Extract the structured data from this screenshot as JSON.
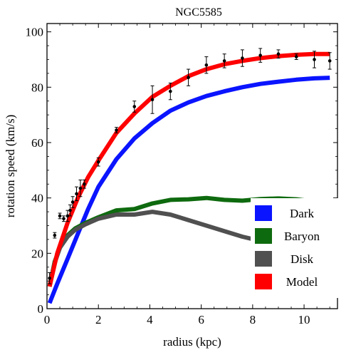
{
  "chart_data": {
    "type": "line",
    "title": "NGC5585",
    "xlabel": "radius (kpc)",
    "ylabel": "rotation speed (km/s)",
    "xlim": [
      0,
      11.3
    ],
    "ylim": [
      0,
      103
    ],
    "x_ticks": [
      0,
      2,
      4,
      6,
      8,
      10
    ],
    "y_ticks": [
      0,
      20,
      40,
      60,
      80,
      100
    ],
    "legend_position": "right",
    "grid": false,
    "series": [
      {
        "name": "Dark",
        "color": "#0a14ff",
        "points": [
          [
            0.1,
            2
          ],
          [
            0.4,
            9
          ],
          [
            0.8,
            18
          ],
          [
            1.2,
            27
          ],
          [
            1.6,
            36
          ],
          [
            2.0,
            44
          ],
          [
            2.7,
            54
          ],
          [
            3.4,
            61.5
          ],
          [
            4.1,
            67
          ],
          [
            4.8,
            71.5
          ],
          [
            5.5,
            74.5
          ],
          [
            6.2,
            76.8
          ],
          [
            6.9,
            78.5
          ],
          [
            7.6,
            80
          ],
          [
            8.3,
            81.2
          ],
          [
            9.0,
            82
          ],
          [
            9.7,
            82.7
          ],
          [
            10.4,
            83.2
          ],
          [
            11.0,
            83.4
          ]
        ]
      },
      {
        "name": "Baryon",
        "color": "#0e6a0e",
        "points": [
          [
            0.1,
            8
          ],
          [
            0.3,
            17
          ],
          [
            0.5,
            22
          ],
          [
            0.8,
            26.5
          ],
          [
            1.1,
            29
          ],
          [
            1.5,
            31
          ],
          [
            2.0,
            33
          ],
          [
            2.7,
            35.5
          ],
          [
            3.4,
            36
          ],
          [
            4.1,
            38
          ],
          [
            4.8,
            39.3
          ],
          [
            5.5,
            39.5
          ],
          [
            6.2,
            40
          ],
          [
            6.9,
            39.3
          ],
          [
            7.6,
            39
          ],
          [
            8.3,
            39.6
          ],
          [
            9.0,
            39.8
          ],
          [
            9.7,
            39.5
          ],
          [
            10.4,
            38.7
          ],
          [
            11.0,
            38.5
          ]
        ]
      },
      {
        "name": "Disk",
        "color": "#505050",
        "points": [
          [
            0.1,
            8
          ],
          [
            0.3,
            16.5
          ],
          [
            0.5,
            22
          ],
          [
            0.8,
            26
          ],
          [
            1.1,
            28.5
          ],
          [
            1.5,
            30.5
          ],
          [
            2.0,
            32.5
          ],
          [
            2.7,
            34
          ],
          [
            3.4,
            34
          ],
          [
            4.1,
            35
          ],
          [
            4.8,
            34
          ],
          [
            5.5,
            32
          ],
          [
            6.2,
            30
          ],
          [
            6.9,
            28
          ],
          [
            7.6,
            26
          ],
          [
            8.3,
            24.5
          ],
          [
            9.0,
            23
          ],
          [
            9.7,
            22
          ],
          [
            10.4,
            21.5
          ],
          [
            11.0,
            21
          ]
        ]
      },
      {
        "name": "Model",
        "color": "#ff0000",
        "points": [
          [
            0.1,
            8
          ],
          [
            0.4,
            20
          ],
          [
            0.8,
            31
          ],
          [
            1.2,
            40
          ],
          [
            1.6,
            47.5
          ],
          [
            2.0,
            53.5
          ],
          [
            2.7,
            63.5
          ],
          [
            3.4,
            70.5
          ],
          [
            4.1,
            76.5
          ],
          [
            4.8,
            80.5
          ],
          [
            5.5,
            84
          ],
          [
            6.2,
            86.5
          ],
          [
            6.9,
            88.3
          ],
          [
            7.6,
            89.5
          ],
          [
            8.3,
            90.5
          ],
          [
            9.0,
            91.2
          ],
          [
            9.7,
            91.7
          ],
          [
            10.4,
            92
          ],
          [
            11.0,
            92
          ]
        ]
      }
    ],
    "observations": [
      {
        "x": 0.1,
        "y": 11,
        "err": 2
      },
      {
        "x": 0.3,
        "y": 26.5,
        "err": 1
      },
      {
        "x": 0.5,
        "y": 33.5,
        "err": 1
      },
      {
        "x": 0.65,
        "y": 32.5,
        "err": 1
      },
      {
        "x": 0.8,
        "y": 33.5,
        "err": 2
      },
      {
        "x": 0.9,
        "y": 35.5,
        "err": 2
      },
      {
        "x": 1.0,
        "y": 38.5,
        "err": 2
      },
      {
        "x": 1.15,
        "y": 41.5,
        "err": 2.5
      },
      {
        "x": 1.3,
        "y": 43.5,
        "err": 3
      },
      {
        "x": 1.45,
        "y": 45,
        "err": 1.5
      },
      {
        "x": 2.0,
        "y": 53,
        "err": 1.5
      },
      {
        "x": 2.7,
        "y": 64.5,
        "err": 1
      },
      {
        "x": 3.4,
        "y": 73,
        "err": 2
      },
      {
        "x": 4.1,
        "y": 75.5,
        "err": 5
      },
      {
        "x": 4.8,
        "y": 78.5,
        "err": 3
      },
      {
        "x": 5.5,
        "y": 83.5,
        "err": 3
      },
      {
        "x": 6.2,
        "y": 88,
        "err": 3
      },
      {
        "x": 6.9,
        "y": 89.5,
        "err": 2.5
      },
      {
        "x": 7.6,
        "y": 90.5,
        "err": 3
      },
      {
        "x": 8.3,
        "y": 91.5,
        "err": 2.5
      },
      {
        "x": 9.0,
        "y": 92,
        "err": 1.5
      },
      {
        "x": 9.7,
        "y": 91,
        "err": 1
      },
      {
        "x": 10.4,
        "y": 90,
        "err": 3
      },
      {
        "x": 11.0,
        "y": 89.5,
        "err": 3
      }
    ]
  }
}
